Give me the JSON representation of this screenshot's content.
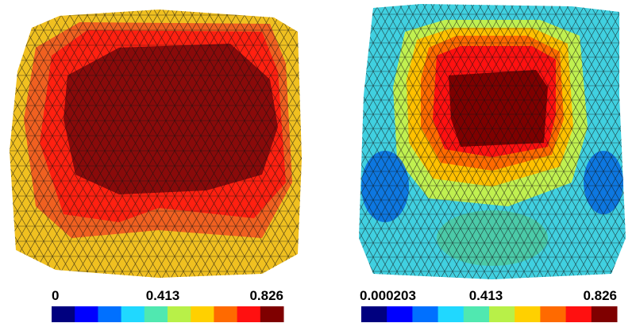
{
  "colormap": [
    "#00007f",
    "#0000ff",
    "#0070ff",
    "#20d8ff",
    "#50e8b0",
    "#b8f048",
    "#ffd000",
    "#ff6a00",
    "#ff1010",
    "#7f0000"
  ],
  "panels": [
    {
      "colorbar": {
        "labels": [
          "0",
          "0.413",
          "0.826"
        ]
      }
    },
    {
      "colorbar": {
        "labels": [
          "0.000203",
          "0.413",
          "0.826"
        ]
      }
    }
  ]
}
